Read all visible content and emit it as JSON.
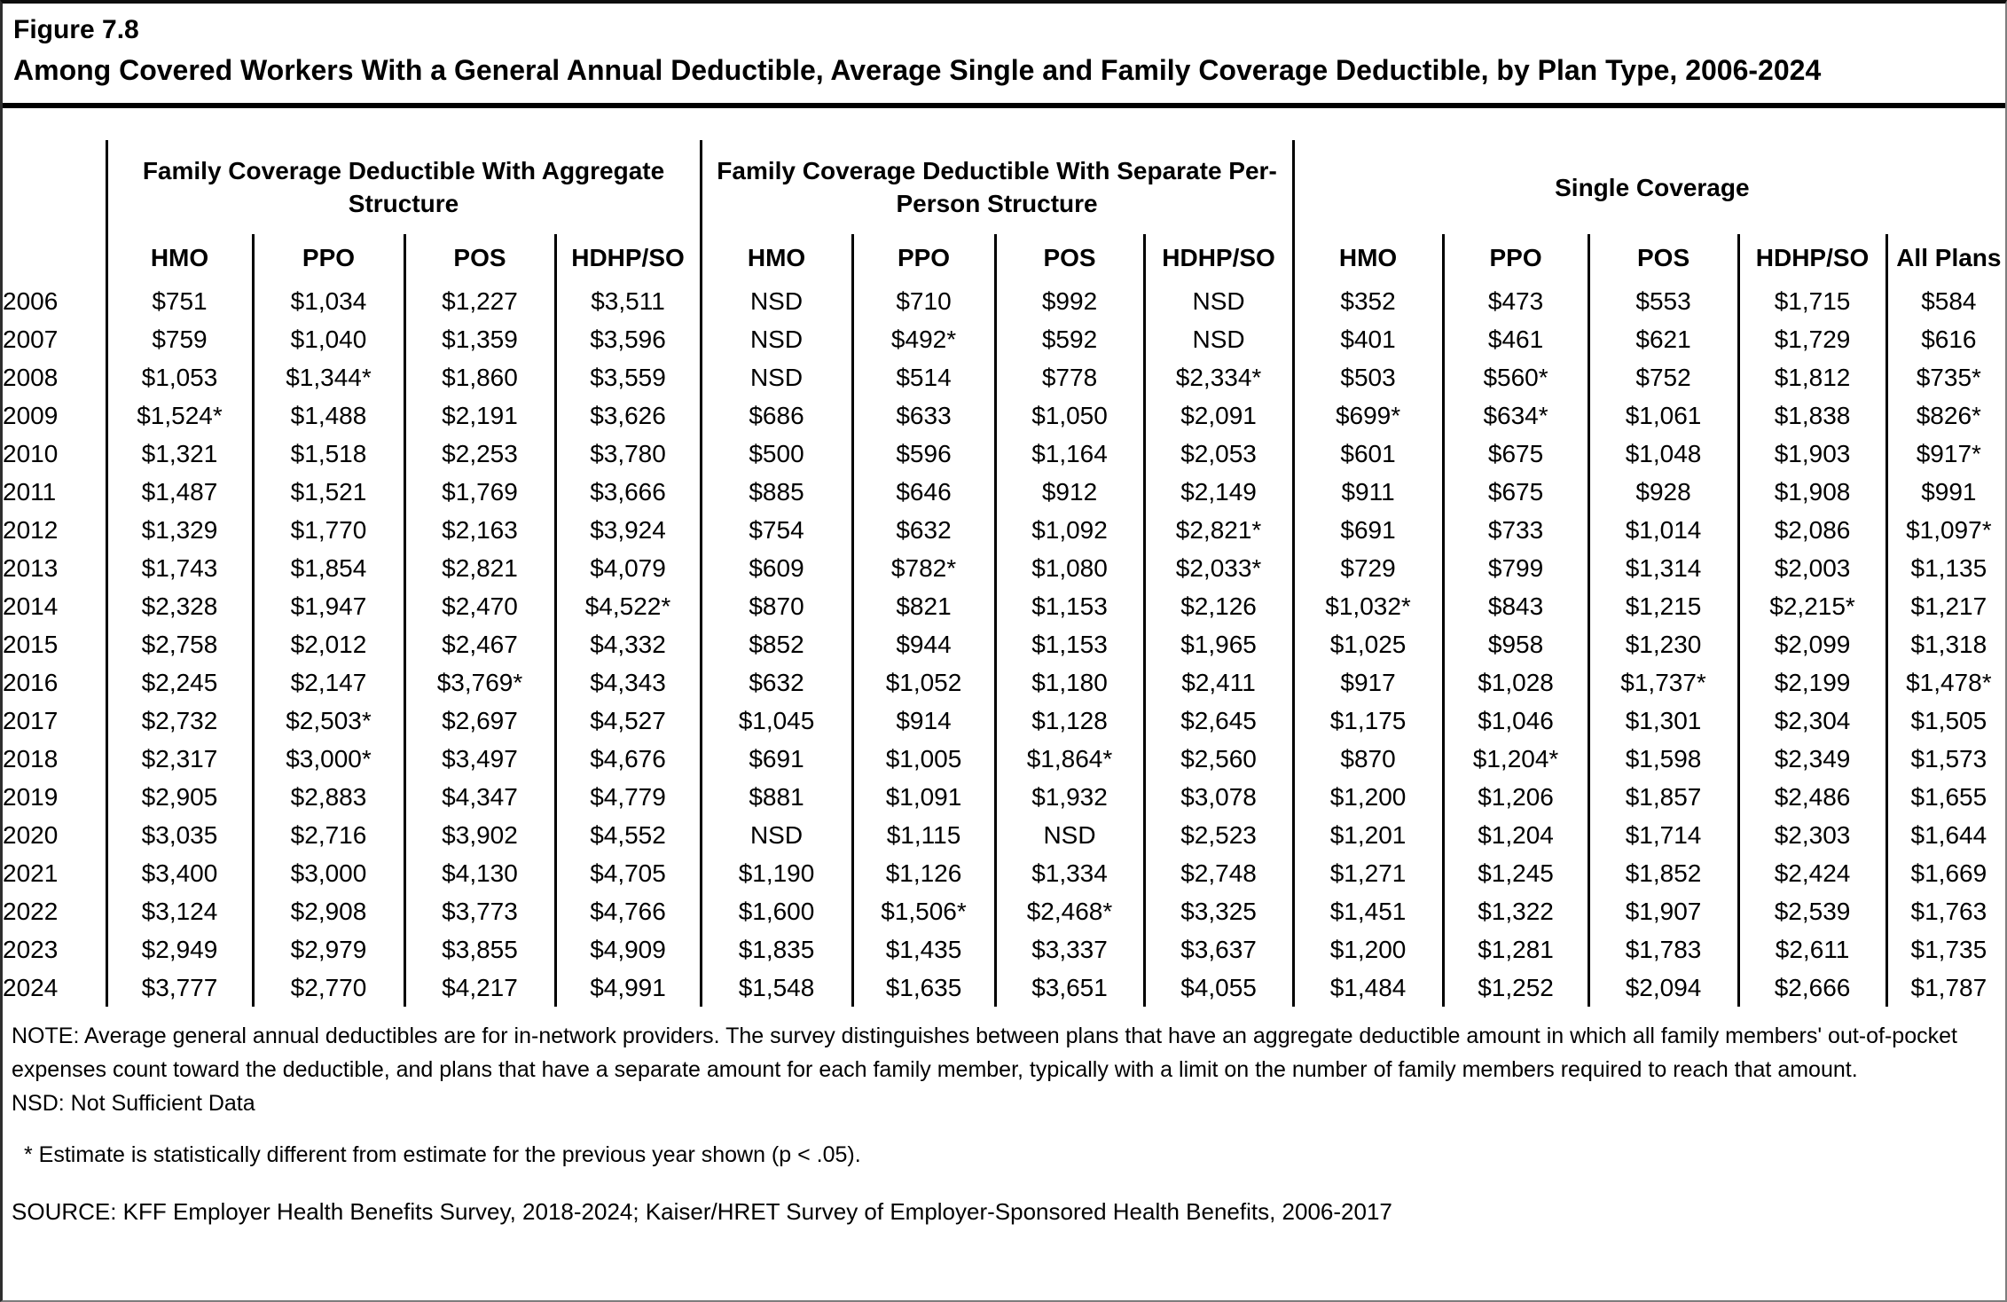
{
  "figure_label": "Figure 7.8",
  "title": "Among Covered Workers With a General Annual Deductible, Average Single and Family Coverage Deductible, by Plan Type, 2006-2024",
  "table": {
    "groups": [
      {
        "label": "Family Coverage Deductible With Aggregate Structure",
        "columns": [
          "HMO",
          "PPO",
          "POS",
          "HDHP/SO"
        ]
      },
      {
        "label": "Family Coverage Deductible With Separate Per-Person Structure",
        "columns": [
          "HMO",
          "PPO",
          "POS",
          "HDHP/SO"
        ]
      },
      {
        "label": "Single Coverage",
        "columns": [
          "HMO",
          "PPO",
          "POS",
          "HDHP/SO",
          "All Plans"
        ]
      }
    ],
    "rows": [
      {
        "year": "2006",
        "values": [
          "$751",
          "$1,034",
          "$1,227",
          "$3,511",
          "NSD",
          "$710",
          "$992",
          "NSD",
          "$352",
          "$473",
          "$553",
          "$1,715",
          "$584"
        ]
      },
      {
        "year": "2007",
        "values": [
          "$759",
          "$1,040",
          "$1,359",
          "$3,596",
          "NSD",
          "$492*",
          "$592",
          "NSD",
          "$401",
          "$461",
          "$621",
          "$1,729",
          "$616"
        ]
      },
      {
        "year": "2008",
        "values": [
          "$1,053",
          "$1,344*",
          "$1,860",
          "$3,559",
          "NSD",
          "$514",
          "$778",
          "$2,334*",
          "$503",
          "$560*",
          "$752",
          "$1,812",
          "$735*"
        ]
      },
      {
        "year": "2009",
        "values": [
          "$1,524*",
          "$1,488",
          "$2,191",
          "$3,626",
          "$686",
          "$633",
          "$1,050",
          "$2,091",
          "$699*",
          "$634*",
          "$1,061",
          "$1,838",
          "$826*"
        ]
      },
      {
        "year": "2010",
        "values": [
          "$1,321",
          "$1,518",
          "$2,253",
          "$3,780",
          "$500",
          "$596",
          "$1,164",
          "$2,053",
          "$601",
          "$675",
          "$1,048",
          "$1,903",
          "$917*"
        ]
      },
      {
        "year": "2011",
        "values": [
          "$1,487",
          "$1,521",
          "$1,769",
          "$3,666",
          "$885",
          "$646",
          "$912",
          "$2,149",
          "$911",
          "$675",
          "$928",
          "$1,908",
          "$991"
        ]
      },
      {
        "year": "2012",
        "values": [
          "$1,329",
          "$1,770",
          "$2,163",
          "$3,924",
          "$754",
          "$632",
          "$1,092",
          "$2,821*",
          "$691",
          "$733",
          "$1,014",
          "$2,086",
          "$1,097*"
        ]
      },
      {
        "year": "2013",
        "values": [
          "$1,743",
          "$1,854",
          "$2,821",
          "$4,079",
          "$609",
          "$782*",
          "$1,080",
          "$2,033*",
          "$729",
          "$799",
          "$1,314",
          "$2,003",
          "$1,135"
        ]
      },
      {
        "year": "2014",
        "values": [
          "$2,328",
          "$1,947",
          "$2,470",
          "$4,522*",
          "$870",
          "$821",
          "$1,153",
          "$2,126",
          "$1,032*",
          "$843",
          "$1,215",
          "$2,215*",
          "$1,217"
        ]
      },
      {
        "year": "2015",
        "values": [
          "$2,758",
          "$2,012",
          "$2,467",
          "$4,332",
          "$852",
          "$944",
          "$1,153",
          "$1,965",
          "$1,025",
          "$958",
          "$1,230",
          "$2,099",
          "$1,318"
        ]
      },
      {
        "year": "2016",
        "values": [
          "$2,245",
          "$2,147",
          "$3,769*",
          "$4,343",
          "$632",
          "$1,052",
          "$1,180",
          "$2,411",
          "$917",
          "$1,028",
          "$1,737*",
          "$2,199",
          "$1,478*"
        ]
      },
      {
        "year": "2017",
        "values": [
          "$2,732",
          "$2,503*",
          "$2,697",
          "$4,527",
          "$1,045",
          "$914",
          "$1,128",
          "$2,645",
          "$1,175",
          "$1,046",
          "$1,301",
          "$2,304",
          "$1,505"
        ]
      },
      {
        "year": "2018",
        "values": [
          "$2,317",
          "$3,000*",
          "$3,497",
          "$4,676",
          "$691",
          "$1,005",
          "$1,864*",
          "$2,560",
          "$870",
          "$1,204*",
          "$1,598",
          "$2,349",
          "$1,573"
        ]
      },
      {
        "year": "2019",
        "values": [
          "$2,905",
          "$2,883",
          "$4,347",
          "$4,779",
          "$881",
          "$1,091",
          "$1,932",
          "$3,078",
          "$1,200",
          "$1,206",
          "$1,857",
          "$2,486",
          "$1,655"
        ]
      },
      {
        "year": "2020",
        "values": [
          "$3,035",
          "$2,716",
          "$3,902",
          "$4,552",
          "NSD",
          "$1,115",
          "NSD",
          "$2,523",
          "$1,201",
          "$1,204",
          "$1,714",
          "$2,303",
          "$1,644"
        ]
      },
      {
        "year": "2021",
        "values": [
          "$3,400",
          "$3,000",
          "$4,130",
          "$4,705",
          "$1,190",
          "$1,126",
          "$1,334",
          "$2,748",
          "$1,271",
          "$1,245",
          "$1,852",
          "$2,424",
          "$1,669"
        ]
      },
      {
        "year": "2022",
        "values": [
          "$3,124",
          "$2,908",
          "$3,773",
          "$4,766",
          "$1,600",
          "$1,506*",
          "$2,468*",
          "$3,325",
          "$1,451",
          "$1,322",
          "$1,907",
          "$2,539",
          "$1,763"
        ]
      },
      {
        "year": "2023",
        "values": [
          "$2,949",
          "$2,979",
          "$3,855",
          "$4,909",
          "$1,835",
          "$1,435",
          "$3,337",
          "$3,637",
          "$1,200",
          "$1,281",
          "$1,783",
          "$2,611",
          "$1,735"
        ]
      },
      {
        "year": "2024",
        "values": [
          "$3,777",
          "$2,770",
          "$4,217",
          "$4,991",
          "$1,548",
          "$1,635",
          "$3,651",
          "$4,055",
          "$1,484",
          "$1,252",
          "$2,094",
          "$2,666",
          "$1,787"
        ]
      }
    ]
  },
  "notes": {
    "note": "NOTE: Average general annual deductibles are for in-network providers. The survey distinguishes between plans that have an aggregate deductible amount in which all family members' out-of-pocket expenses count toward the deductible, and plans that have a separate amount for each family member, typically with a limit on the number of family members required to reach that amount.",
    "nsd": "NSD: Not Sufficient Data",
    "significance": "* Estimate is statistically different from estimate for the previous year shown (p < .05).",
    "source": "SOURCE: KFF Employer Health Benefits Survey, 2018-2024; Kaiser/HRET Survey of Employer-Sponsored Health Benefits, 2006-2017"
  },
  "colors": {
    "background": "#ffffff",
    "text": "#000000",
    "rule": "#000000",
    "outer_border": "#808080"
  }
}
